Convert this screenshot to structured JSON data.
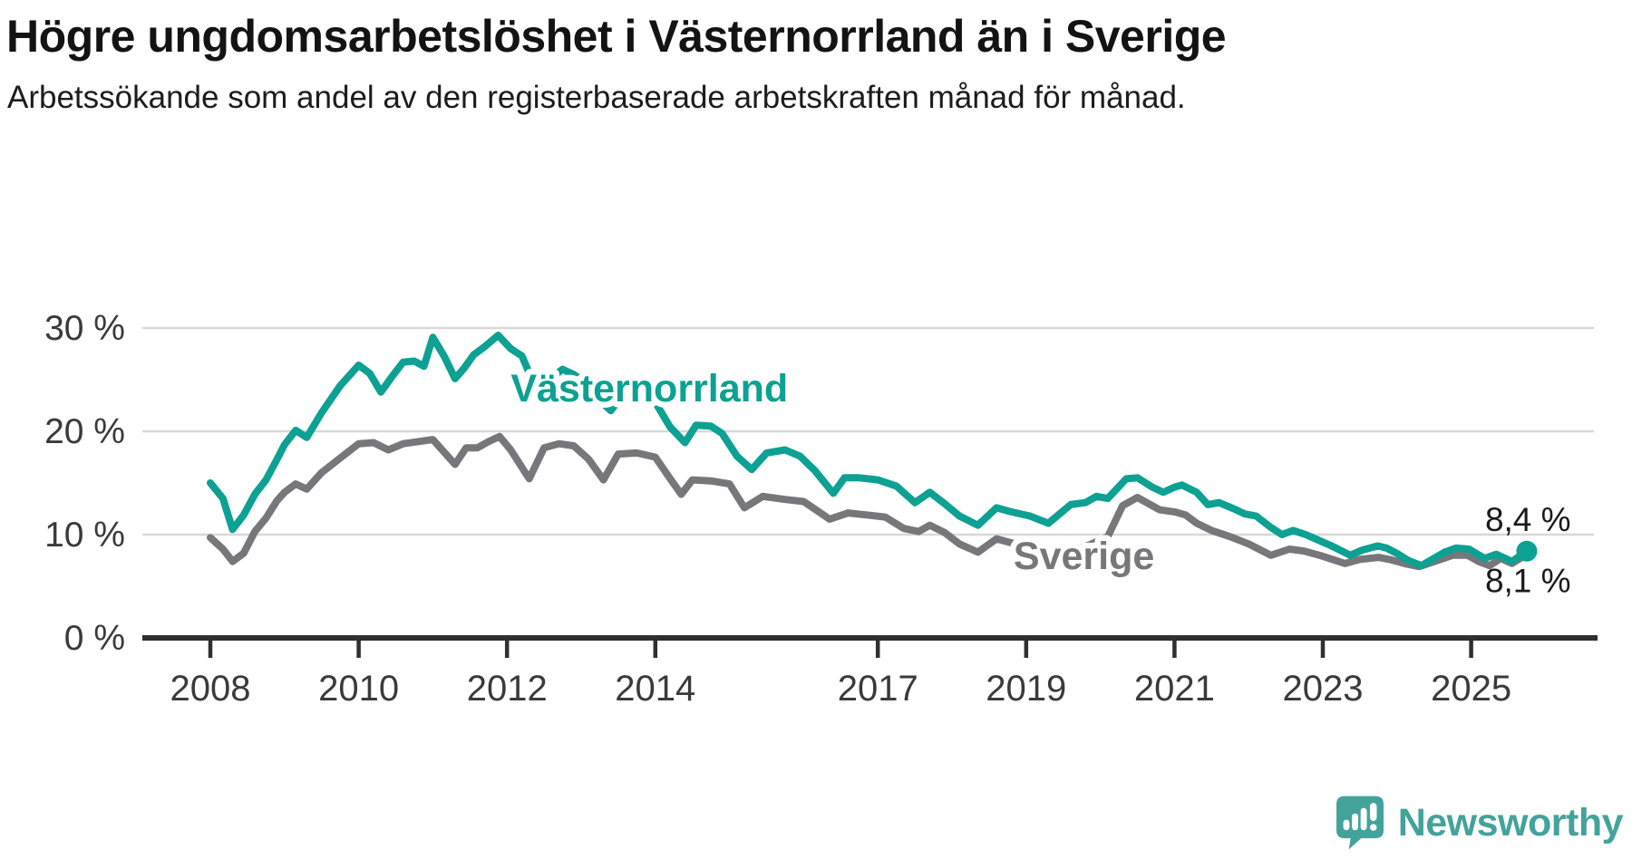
{
  "header": {
    "title": "Högre ungdomsarbetslöshet i Västernorrland än i Sverige",
    "subtitle": "Arbetssökande som andel av den registerbaserade arbetskraften månad för månad."
  },
  "chart_data": {
    "type": "line",
    "title": "Högre ungdomsarbetslöshet i Västernorrland än i Sverige",
    "xlabel": "",
    "ylabel": "",
    "grid": "horizontal-only",
    "legend_position": "inline-labels-on-lines",
    "x_range": [
      2008.0,
      2025.75
    ],
    "ylim": [
      0,
      32
    ],
    "y_ticks": [
      {
        "value": 0,
        "label": "0 %"
      },
      {
        "value": 10,
        "label": "10 %"
      },
      {
        "value": 20,
        "label": "20 %"
      },
      {
        "value": 30,
        "label": "30 %"
      }
    ],
    "x_ticks": [
      {
        "value": 2008,
        "label": "2008"
      },
      {
        "value": 2010,
        "label": "2010"
      },
      {
        "value": 2012,
        "label": "2012"
      },
      {
        "value": 2014,
        "label": "2014"
      },
      {
        "value": 2017,
        "label": "2017"
      },
      {
        "value": 2019,
        "label": "2019"
      },
      {
        "value": 2021,
        "label": "2021"
      },
      {
        "value": 2023,
        "label": "2023"
      },
      {
        "value": 2025,
        "label": "2025"
      }
    ],
    "colors": {
      "grid": "#d8d8d8",
      "axis": "#2f2f2f",
      "tick_label": "#3a3a3a",
      "end_label_text": "#1a1a1a"
    },
    "series": [
      {
        "name": "Sverige",
        "color": "#77777b",
        "label_pos": {
          "x": 2019.78,
          "y": 8.0
        },
        "end_label": "8,1 %",
        "end_label_side": "below",
        "end_dot": false,
        "points": [
          [
            2008.0,
            9.7
          ],
          [
            2008.17,
            8.6
          ],
          [
            2008.3,
            7.4
          ],
          [
            2008.45,
            8.2
          ],
          [
            2008.6,
            10.3
          ],
          [
            2008.75,
            11.6
          ],
          [
            2008.9,
            13.3
          ],
          [
            2009.0,
            14.1
          ],
          [
            2009.15,
            14.9
          ],
          [
            2009.3,
            14.4
          ],
          [
            2009.5,
            16.0
          ],
          [
            2009.75,
            17.4
          ],
          [
            2010.0,
            18.8
          ],
          [
            2010.2,
            18.9
          ],
          [
            2010.4,
            18.2
          ],
          [
            2010.6,
            18.8
          ],
          [
            2010.8,
            19.0
          ],
          [
            2011.0,
            19.2
          ],
          [
            2011.15,
            18.0
          ],
          [
            2011.3,
            16.8
          ],
          [
            2011.45,
            18.4
          ],
          [
            2011.6,
            18.4
          ],
          [
            2011.75,
            19.0
          ],
          [
            2011.9,
            19.5
          ],
          [
            2012.05,
            18.2
          ],
          [
            2012.3,
            15.4
          ],
          [
            2012.5,
            18.4
          ],
          [
            2012.7,
            18.8
          ],
          [
            2012.9,
            18.6
          ],
          [
            2013.1,
            17.3
          ],
          [
            2013.3,
            15.3
          ],
          [
            2013.5,
            17.8
          ],
          [
            2013.75,
            17.9
          ],
          [
            2014.0,
            17.5
          ],
          [
            2014.2,
            15.4
          ],
          [
            2014.35,
            13.9
          ],
          [
            2014.5,
            15.3
          ],
          [
            2014.75,
            15.2
          ],
          [
            2015.0,
            14.9
          ],
          [
            2015.2,
            12.6
          ],
          [
            2015.45,
            13.7
          ],
          [
            2015.75,
            13.4
          ],
          [
            2016.0,
            13.2
          ],
          [
            2016.35,
            11.5
          ],
          [
            2016.6,
            12.1
          ],
          [
            2016.85,
            11.9
          ],
          [
            2017.1,
            11.7
          ],
          [
            2017.35,
            10.6
          ],
          [
            2017.55,
            10.3
          ],
          [
            2017.7,
            10.9
          ],
          [
            2017.9,
            10.2
          ],
          [
            2018.1,
            9.1
          ],
          [
            2018.35,
            8.3
          ],
          [
            2018.6,
            9.6
          ],
          [
            2018.8,
            9.2
          ],
          [
            2019.0,
            8.8
          ],
          [
            2019.3,
            7.6
          ],
          [
            2019.6,
            8.3
          ],
          [
            2019.85,
            9.0
          ],
          [
            2020.1,
            9.8
          ],
          [
            2020.3,
            12.8
          ],
          [
            2020.5,
            13.6
          ],
          [
            2020.8,
            12.4
          ],
          [
            2021.0,
            12.2
          ],
          [
            2021.15,
            11.9
          ],
          [
            2021.3,
            11.1
          ],
          [
            2021.5,
            10.4
          ],
          [
            2021.75,
            9.8
          ],
          [
            2022.0,
            9.1
          ],
          [
            2022.3,
            8.0
          ],
          [
            2022.55,
            8.6
          ],
          [
            2022.75,
            8.4
          ],
          [
            2023.0,
            7.9
          ],
          [
            2023.3,
            7.2
          ],
          [
            2023.5,
            7.6
          ],
          [
            2023.75,
            7.8
          ],
          [
            2023.9,
            7.6
          ],
          [
            2024.1,
            7.2
          ],
          [
            2024.3,
            6.9
          ],
          [
            2024.55,
            7.5
          ],
          [
            2024.75,
            8.0
          ],
          [
            2024.95,
            8.0
          ],
          [
            2025.1,
            7.4
          ],
          [
            2025.25,
            7.0
          ],
          [
            2025.4,
            7.7
          ],
          [
            2025.55,
            7.2
          ],
          [
            2025.75,
            8.1
          ]
        ]
      },
      {
        "name": "Västernorrland",
        "color": "#0ca192",
        "label_pos": {
          "x": 2013.92,
          "y": 24.2
        },
        "end_label": "8,4 %",
        "end_label_side": "above",
        "end_dot": true,
        "points": [
          [
            2008.0,
            15.0
          ],
          [
            2008.17,
            13.5
          ],
          [
            2008.3,
            10.5
          ],
          [
            2008.45,
            11.9
          ],
          [
            2008.6,
            13.9
          ],
          [
            2008.75,
            15.3
          ],
          [
            2008.9,
            17.3
          ],
          [
            2009.0,
            18.7
          ],
          [
            2009.15,
            20.1
          ],
          [
            2009.3,
            19.4
          ],
          [
            2009.5,
            21.8
          ],
          [
            2009.75,
            24.4
          ],
          [
            2010.0,
            26.4
          ],
          [
            2010.15,
            25.6
          ],
          [
            2010.3,
            23.8
          ],
          [
            2010.45,
            25.3
          ],
          [
            2010.6,
            26.7
          ],
          [
            2010.75,
            26.8
          ],
          [
            2010.88,
            26.3
          ],
          [
            2011.0,
            29.1
          ],
          [
            2011.15,
            27.3
          ],
          [
            2011.3,
            25.1
          ],
          [
            2011.42,
            26.1
          ],
          [
            2011.55,
            27.4
          ],
          [
            2011.7,
            28.2
          ],
          [
            2011.88,
            29.3
          ],
          [
            2012.05,
            28.0
          ],
          [
            2012.2,
            27.3
          ],
          [
            2012.35,
            24.8
          ],
          [
            2012.46,
            22.9
          ],
          [
            2012.6,
            25.2
          ],
          [
            2012.75,
            26.0
          ],
          [
            2012.9,
            25.5
          ],
          [
            2013.1,
            24.5
          ],
          [
            2013.25,
            23.0
          ],
          [
            2013.4,
            22.0
          ],
          [
            2013.55,
            23.4
          ],
          [
            2013.75,
            23.8
          ],
          [
            2014.0,
            22.8
          ],
          [
            2014.2,
            20.4
          ],
          [
            2014.4,
            18.9
          ],
          [
            2014.55,
            20.6
          ],
          [
            2014.75,
            20.5
          ],
          [
            2014.9,
            19.8
          ],
          [
            2015.1,
            17.6
          ],
          [
            2015.3,
            16.3
          ],
          [
            2015.5,
            17.9
          ],
          [
            2015.75,
            18.2
          ],
          [
            2015.95,
            17.6
          ],
          [
            2016.15,
            16.2
          ],
          [
            2016.4,
            14.0
          ],
          [
            2016.55,
            15.5
          ],
          [
            2016.75,
            15.5
          ],
          [
            2017.0,
            15.3
          ],
          [
            2017.25,
            14.7
          ],
          [
            2017.5,
            13.1
          ],
          [
            2017.7,
            14.1
          ],
          [
            2017.9,
            13.0
          ],
          [
            2018.1,
            11.8
          ],
          [
            2018.35,
            10.9
          ],
          [
            2018.6,
            12.6
          ],
          [
            2018.8,
            12.2
          ],
          [
            2019.05,
            11.8
          ],
          [
            2019.3,
            11.1
          ],
          [
            2019.6,
            12.9
          ],
          [
            2019.8,
            13.1
          ],
          [
            2019.95,
            13.7
          ],
          [
            2020.1,
            13.5
          ],
          [
            2020.35,
            15.4
          ],
          [
            2020.5,
            15.5
          ],
          [
            2020.7,
            14.6
          ],
          [
            2020.85,
            14.1
          ],
          [
            2021.0,
            14.6
          ],
          [
            2021.1,
            14.8
          ],
          [
            2021.3,
            14.1
          ],
          [
            2021.45,
            12.9
          ],
          [
            2021.6,
            13.1
          ],
          [
            2021.8,
            12.5
          ],
          [
            2021.95,
            12.0
          ],
          [
            2022.1,
            11.8
          ],
          [
            2022.3,
            10.7
          ],
          [
            2022.45,
            10.0
          ],
          [
            2022.6,
            10.4
          ],
          [
            2022.77,
            10.0
          ],
          [
            2022.96,
            9.4
          ],
          [
            2023.12,
            8.9
          ],
          [
            2023.37,
            8.0
          ],
          [
            2023.53,
            8.5
          ],
          [
            2023.74,
            8.9
          ],
          [
            2023.86,
            8.7
          ],
          [
            2024.02,
            8.1
          ],
          [
            2024.15,
            7.5
          ],
          [
            2024.33,
            7.0
          ],
          [
            2024.64,
            8.3
          ],
          [
            2024.8,
            8.7
          ],
          [
            2024.97,
            8.6
          ],
          [
            2025.18,
            7.7
          ],
          [
            2025.34,
            8.1
          ],
          [
            2025.55,
            7.4
          ],
          [
            2025.75,
            8.4
          ]
        ]
      }
    ]
  },
  "footer": {
    "brand": "Newsworthy",
    "brand_color": "#43a39b"
  }
}
